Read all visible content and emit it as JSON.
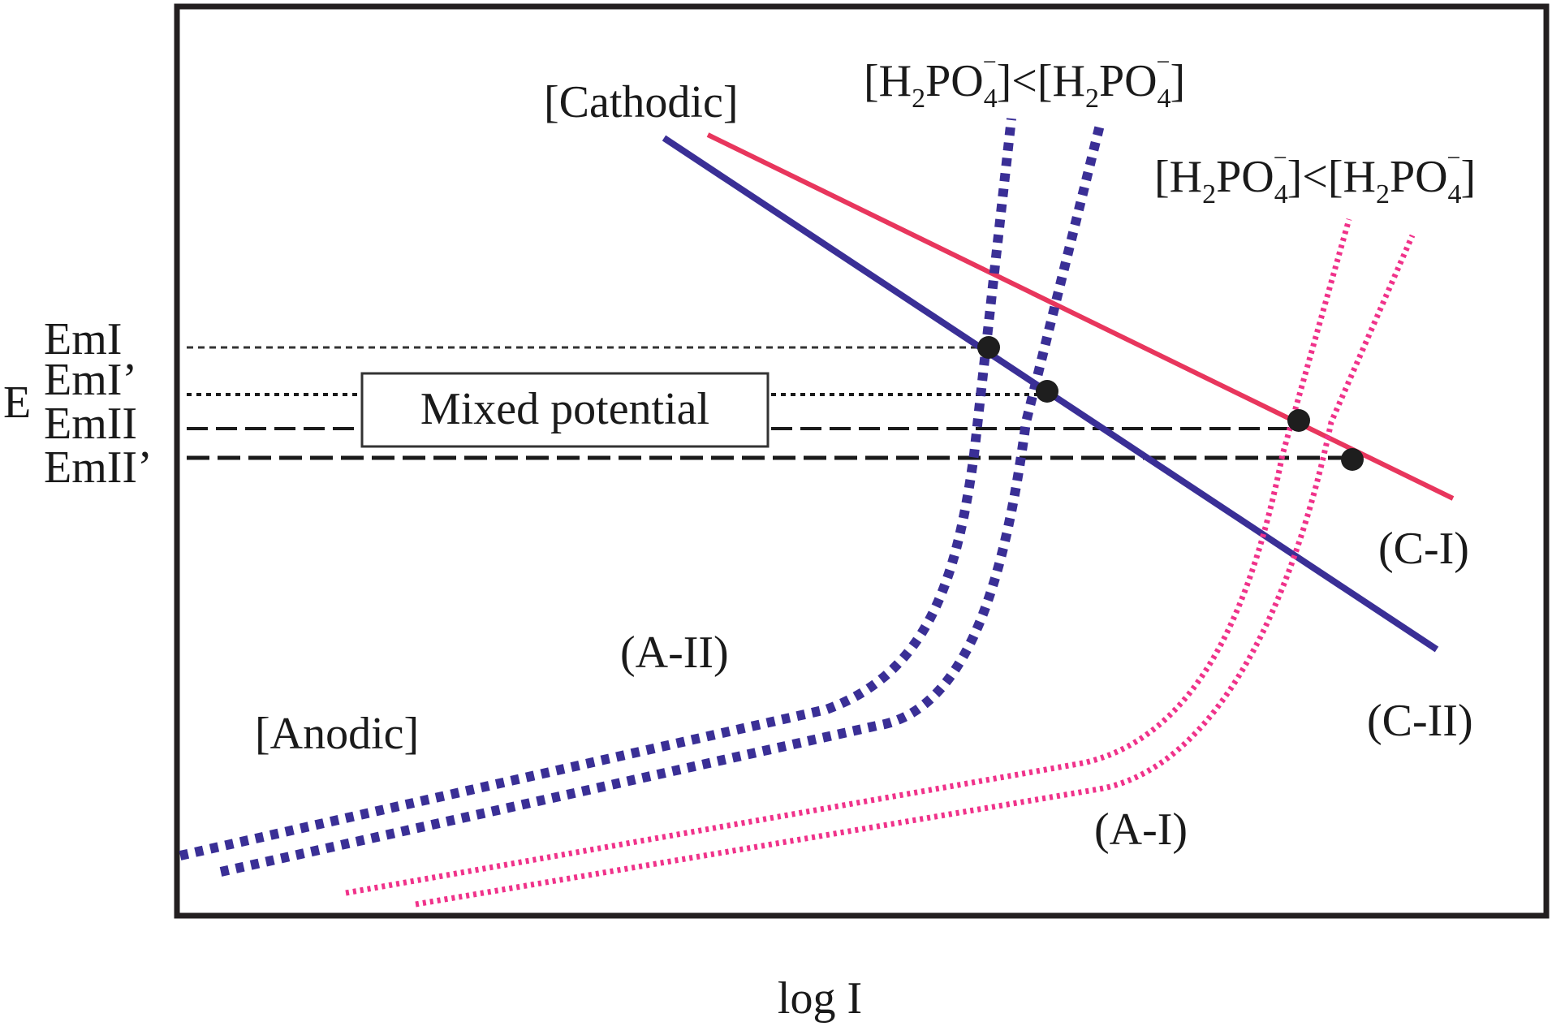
{
  "diagram": {
    "labels": {
      "cathodic": "[Cathodic]",
      "anodic": "[Anodic]",
      "mixed_potential": "Mixed potential",
      "x_axis": "log I",
      "y_axis": "E",
      "emI": "EmI",
      "emI_prime": "EmI’",
      "emII": "EmII",
      "emII_prime": "EmII’",
      "c_I": "(C-I)",
      "c_II": "(C-II)",
      "a_I": "(A-I)",
      "a_II": "(A-II)"
    },
    "concentration_label": {
      "open": "[H",
      "sub2": "2",
      "po": "PO",
      "sub4": "4",
      "charge": "−",
      "close": "]<[H"
    },
    "colors": {
      "cathodic_I": "#e8365d",
      "cathodic_II": "#3a2f96",
      "anodic_I": "#f0328a",
      "anodic_II": "#3a2f96",
      "frame": "#231f20",
      "intersection": "#1e1e1e"
    }
  }
}
